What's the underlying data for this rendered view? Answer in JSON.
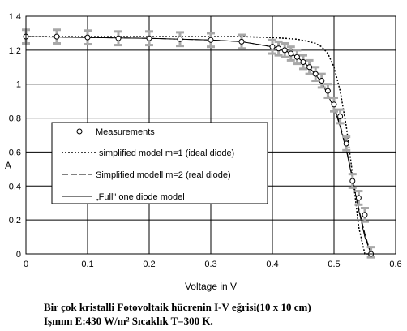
{
  "chart_data": {
    "type": "line",
    "xlabel": "Voltage in V",
    "ylabel": "A",
    "xlim": [
      0,
      0.6
    ],
    "ylim": [
      0,
      1.4
    ],
    "x_ticks": [
      "0",
      "0.1",
      "0.2",
      "0.3",
      "0.4",
      "0.5",
      "0.6"
    ],
    "y_ticks": [
      "0",
      "0.2",
      "0.4",
      "0.6",
      "0.8",
      "1",
      "1.2",
      "1.4"
    ],
    "grid": true,
    "legend_position": "center-left",
    "legend": [
      "Measurements",
      "simplified model m=1 (ideal diode)",
      "Simplified modell m=2 (real diode)",
      "„Full\" one diode model"
    ],
    "series": [
      {
        "name": "Measurements",
        "style": "markers",
        "x": [
          0,
          0.05,
          0.1,
          0.15,
          0.2,
          0.25,
          0.3,
          0.35,
          0.4,
          0.41,
          0.42,
          0.43,
          0.44,
          0.45,
          0.46,
          0.47,
          0.48,
          0.49,
          0.5,
          0.51,
          0.52,
          0.53,
          0.54,
          0.55,
          0.56
        ],
        "y": [
          1.28,
          1.28,
          1.275,
          1.27,
          1.27,
          1.265,
          1.26,
          1.25,
          1.22,
          1.21,
          1.2,
          1.18,
          1.16,
          1.13,
          1.1,
          1.06,
          1.02,
          0.96,
          0.88,
          0.81,
          0.65,
          0.43,
          0.33,
          0.23,
          0
        ],
        "error": 0.04
      },
      {
        "name": "simplified model m=1 (ideal diode)",
        "style": "dotted",
        "x": [
          0,
          0.1,
          0.2,
          0.3,
          0.35,
          0.4,
          0.42,
          0.44,
          0.46,
          0.47,
          0.48,
          0.49,
          0.5,
          0.51,
          0.52,
          0.53,
          0.54,
          0.55,
          0.56
        ],
        "y": [
          1.28,
          1.28,
          1.28,
          1.28,
          1.28,
          1.275,
          1.27,
          1.265,
          1.25,
          1.24,
          1.22,
          1.18,
          1.1,
          0.96,
          0.75,
          0.47,
          0.16,
          -0.05,
          -0.05
        ]
      },
      {
        "name": "Simplified modell m=2 (real diode)",
        "style": "dashed",
        "x": [
          0,
          0.1,
          0.2,
          0.3,
          0.35,
          0.4,
          0.42,
          0.44,
          0.46,
          0.48,
          0.5,
          0.51,
          0.52,
          0.53,
          0.54,
          0.55,
          0.56
        ],
        "y": [
          1.28,
          1.275,
          1.27,
          1.26,
          1.25,
          1.22,
          1.2,
          1.16,
          1.1,
          1.01,
          0.87,
          0.76,
          0.62,
          0.45,
          0.27,
          0.12,
          0
        ]
      },
      {
        "name": "„Full\" one diode model",
        "style": "solid",
        "x": [
          0,
          0.1,
          0.2,
          0.3,
          0.35,
          0.4,
          0.42,
          0.44,
          0.46,
          0.48,
          0.5,
          0.51,
          0.52,
          0.53,
          0.54,
          0.55,
          0.56
        ],
        "y": [
          1.28,
          1.275,
          1.27,
          1.26,
          1.25,
          1.22,
          1.2,
          1.16,
          1.1,
          1.01,
          0.86,
          0.75,
          0.61,
          0.44,
          0.26,
          0.1,
          0
        ]
      }
    ]
  },
  "caption": {
    "line1": "Bir çok kristalli Fotovoltaik hücrenin I-V eğrisi(10 x 10 cm)",
    "line2": "Işınım E:430 W/m² Sıcaklık T=300 K."
  }
}
